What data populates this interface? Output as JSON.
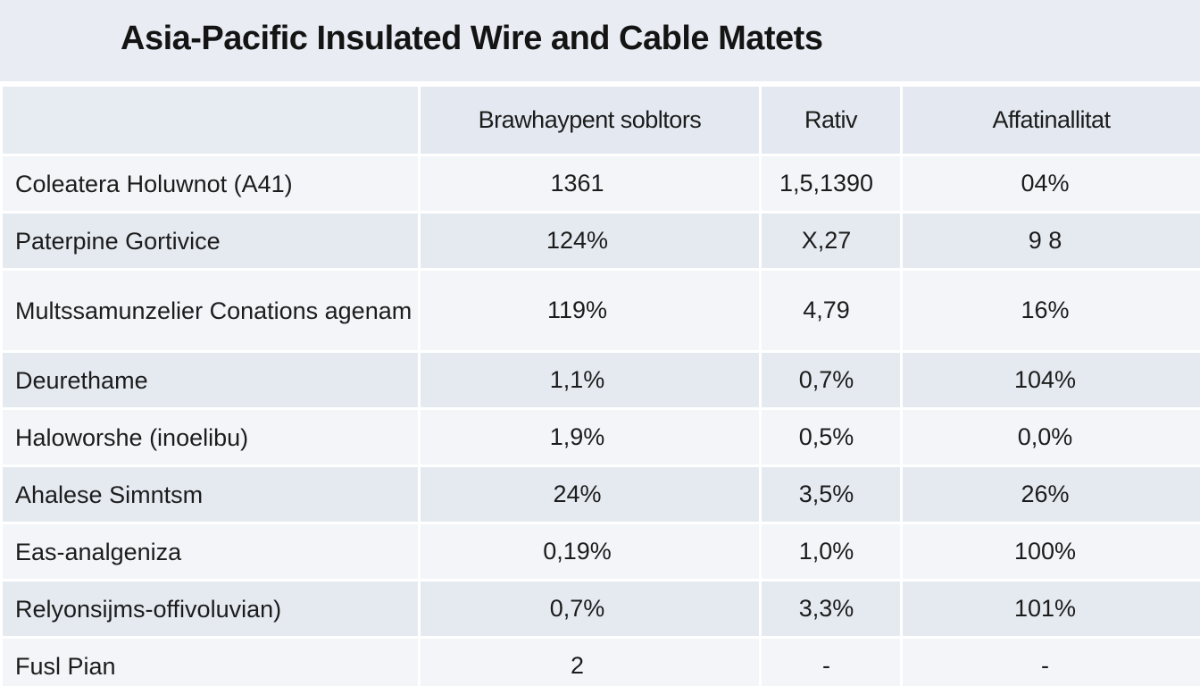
{
  "title": "Asia-Pacific Insulated Wire and Cable Matets",
  "table": {
    "headers": [
      "",
      "Brawhaypent sobltors",
      "Rativ",
      "Affatinallitat"
    ],
    "rows": [
      {
        "label": "Coleatera Holuwnot (A41)",
        "values": [
          "1361",
          "1,5,1390",
          "04%"
        ]
      },
      {
        "label": "Paterpine Gortivice",
        "values": [
          "124%",
          "X,27",
          "9 8"
        ]
      },
      {
        "label": "Multssamunzelier Conations agenam",
        "values": [
          "119%",
          "4,79",
          "16%"
        ]
      },
      {
        "label": "Deurethame",
        "values": [
          "1,1%",
          "0,7%",
          "104%"
        ]
      },
      {
        "label": "Haloworshe (inoelibu)",
        "values": [
          "1,9%",
          "0,5%",
          "0,0%"
        ]
      },
      {
        "label": "Ahalese Simntsm",
        "values": [
          "24%",
          "3,5%",
          "26%"
        ]
      },
      {
        "label": "Eas-analgeniza",
        "values": [
          "0,19%",
          "1,0%",
          "100%"
        ]
      },
      {
        "label": "Relyonsijms-offivoluvian)",
        "values": [
          "0,7%",
          "3,3%",
          "101%"
        ]
      },
      {
        "label": "Fusl Pian",
        "values": [
          "2",
          "-",
          "-"
        ]
      }
    ]
  }
}
